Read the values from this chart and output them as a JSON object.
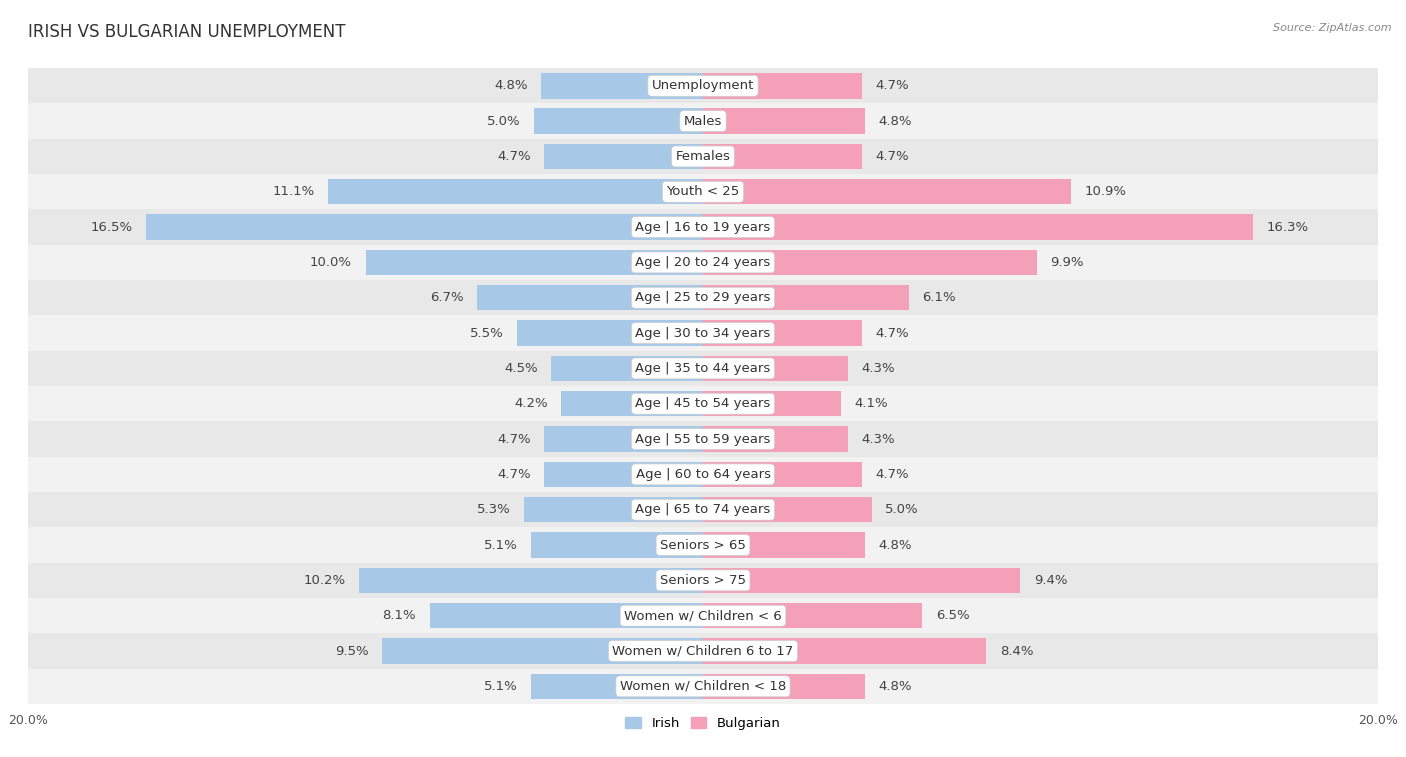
{
  "title": "IRISH VS BULGARIAN UNEMPLOYMENT",
  "source": "Source: ZipAtlas.com",
  "categories": [
    "Unemployment",
    "Males",
    "Females",
    "Youth < 25",
    "Age | 16 to 19 years",
    "Age | 20 to 24 years",
    "Age | 25 to 29 years",
    "Age | 30 to 34 years",
    "Age | 35 to 44 years",
    "Age | 45 to 54 years",
    "Age | 55 to 59 years",
    "Age | 60 to 64 years",
    "Age | 65 to 74 years",
    "Seniors > 65",
    "Seniors > 75",
    "Women w/ Children < 6",
    "Women w/ Children 6 to 17",
    "Women w/ Children < 18"
  ],
  "irish": [
    4.8,
    5.0,
    4.7,
    11.1,
    16.5,
    10.0,
    6.7,
    5.5,
    4.5,
    4.2,
    4.7,
    4.7,
    5.3,
    5.1,
    10.2,
    8.1,
    9.5,
    5.1
  ],
  "bulgarian": [
    4.7,
    4.8,
    4.7,
    10.9,
    16.3,
    9.9,
    6.1,
    4.7,
    4.3,
    4.1,
    4.3,
    4.7,
    5.0,
    4.8,
    9.4,
    6.5,
    8.4,
    4.8
  ],
  "irish_color": "#a8c8e8",
  "bulgarian_color": "#f4a0b8",
  "bar_height": 0.72,
  "bg_color_light": "#ebebeb",
  "bg_color_white": "#f8f8f8",
  "row_bg_odd": "#e8e8e8",
  "row_bg_even": "#f2f2f2",
  "label_fontsize": 9.5,
  "title_fontsize": 12,
  "axis_label_fontsize": 9,
  "x_max": 20.0,
  "x_tick_label": "20.0%",
  "legend_irish": "Irish",
  "legend_bulgarian": "Bulgarian"
}
